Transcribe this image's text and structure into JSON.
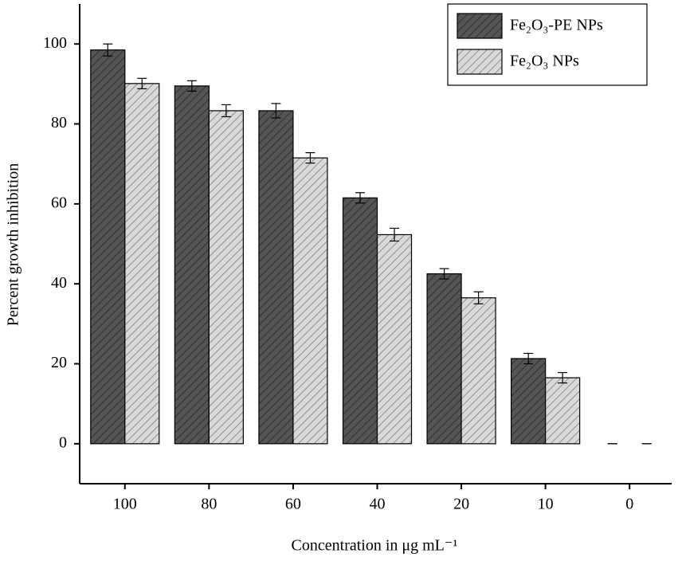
{
  "chart_data": {
    "type": "bar",
    "x_label": "Concentration in μg mL⁻¹",
    "y_label": "Percent growth inhibition",
    "categories": [
      "100",
      "80",
      "60",
      "40",
      "20",
      "10",
      "0"
    ],
    "series": [
      {
        "name": "Fe₂O₃-PE NPs",
        "color": "#555555",
        "values": [
          98.5,
          89.5,
          83.3,
          61.5,
          42.5,
          21.3,
          0
        ],
        "errors": [
          1.5,
          1.3,
          1.8,
          1.3,
          1.3,
          1.3,
          0
        ]
      },
      {
        "name": "Fe₂O₃ NPs",
        "color": "#d9d9d9",
        "values": [
          90.1,
          83.3,
          71.5,
          52.3,
          36.5,
          16.5,
          0
        ],
        "errors": [
          1.3,
          1.5,
          1.3,
          1.6,
          1.5,
          1.3,
          0
        ]
      }
    ],
    "ylim": [
      -10,
      110
    ],
    "yticks": [
      0,
      20,
      40,
      60,
      80,
      100
    ],
    "grid": false,
    "legend": "upper right"
  }
}
